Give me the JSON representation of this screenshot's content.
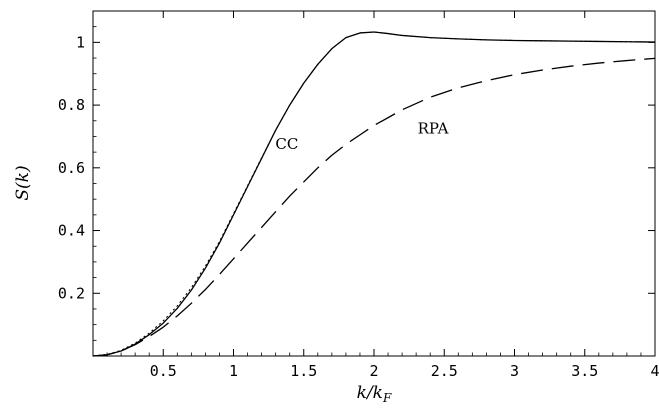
{
  "chart_data": {
    "type": "line",
    "xlabel": "k/k_F",
    "ylabel": "S(k)",
    "xlim": [
      0,
      4
    ],
    "ylim": [
      0,
      1.1
    ],
    "grid": false,
    "x_ticks": [
      0.5,
      1,
      1.5,
      2,
      2.5,
      3,
      3.5,
      4
    ],
    "x_tick_labels": [
      "0.5",
      "1",
      "1.5",
      "2",
      "2.5",
      "3",
      "3.5",
      "4"
    ],
    "y_ticks": [
      0.2,
      0.4,
      0.6,
      0.8,
      1
    ],
    "y_tick_labels": [
      "0.2",
      "0.4",
      "0.6",
      "0.8",
      "1"
    ],
    "annotations": [
      {
        "text": "CC",
        "x": 1.38,
        "y": 0.66
      },
      {
        "text": "RPA",
        "x": 2.42,
        "y": 0.71
      }
    ],
    "series": [
      {
        "name": "CC",
        "style": "solid",
        "x": [
          0,
          0.1,
          0.2,
          0.3,
          0.4,
          0.5,
          0.6,
          0.7,
          0.8,
          0.9,
          1.0,
          1.1,
          1.2,
          1.3,
          1.4,
          1.5,
          1.6,
          1.7,
          1.8,
          1.9,
          2.0,
          2.1,
          2.2,
          2.4,
          2.6,
          2.8,
          3.0,
          3.2,
          3.4,
          3.6,
          3.8,
          4.0
        ],
        "y": [
          0,
          0.004,
          0.016,
          0.038,
          0.068,
          0.105,
          0.152,
          0.21,
          0.28,
          0.36,
          0.45,
          0.54,
          0.63,
          0.72,
          0.8,
          0.87,
          0.93,
          0.98,
          1.015,
          1.03,
          1.033,
          1.028,
          1.022,
          1.015,
          1.011,
          1.008,
          1.006,
          1.005,
          1.004,
          1.003,
          1.002,
          1.001
        ]
      },
      {
        "name": "",
        "style": "dotted",
        "x": [
          0,
          0.1,
          0.2,
          0.3,
          0.4,
          0.5,
          0.6,
          0.7,
          0.8,
          0.9,
          1.0,
          1.1,
          1.2,
          1.3,
          1.4,
          1.5,
          1.6,
          1.7,
          1.8,
          1.9,
          2.0,
          2.1,
          2.2,
          2.4,
          2.6,
          2.8,
          3.0,
          3.2,
          3.4,
          3.6,
          3.8,
          4.0
        ],
        "y": [
          0,
          0.005,
          0.018,
          0.041,
          0.073,
          0.112,
          0.16,
          0.218,
          0.287,
          0.365,
          0.454,
          0.543,
          0.632,
          0.72,
          0.8,
          0.87,
          0.93,
          0.98,
          1.015,
          1.03,
          1.033,
          1.028,
          1.022,
          1.015,
          1.011,
          1.008,
          1.006,
          1.005,
          1.004,
          1.003,
          1.002,
          1.001
        ]
      },
      {
        "name": "RPA",
        "style": "dashed",
        "x": [
          0,
          0.1,
          0.2,
          0.3,
          0.4,
          0.5,
          0.6,
          0.7,
          0.8,
          0.9,
          1.0,
          1.1,
          1.2,
          1.3,
          1.4,
          1.5,
          1.6,
          1.7,
          1.8,
          1.9,
          2.0,
          2.2,
          2.4,
          2.6,
          2.8,
          3.0,
          3.2,
          3.4,
          3.6,
          3.8,
          4.0
        ],
        "y": [
          0,
          0.004,
          0.016,
          0.036,
          0.062,
          0.092,
          0.128,
          0.168,
          0.212,
          0.26,
          0.31,
          0.36,
          0.41,
          0.46,
          0.51,
          0.555,
          0.6,
          0.64,
          0.675,
          0.705,
          0.735,
          0.785,
          0.825,
          0.855,
          0.878,
          0.897,
          0.912,
          0.924,
          0.934,
          0.942,
          0.949
        ]
      }
    ]
  }
}
